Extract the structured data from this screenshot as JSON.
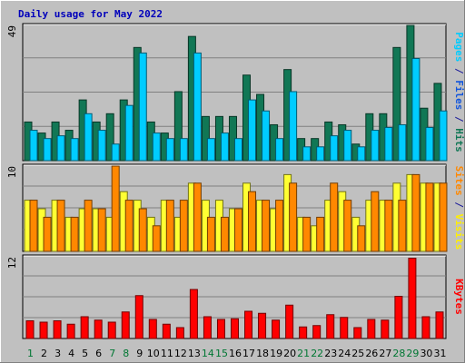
{
  "chart_data": [
    {
      "type": "bar",
      "title": "Daily usage for May 2022",
      "categories": [
        "1",
        "2",
        "3",
        "4",
        "5",
        "6",
        "7",
        "8",
        "9",
        "10",
        "11",
        "12",
        "13",
        "14",
        "15",
        "16",
        "17",
        "18",
        "19",
        "20",
        "21",
        "22",
        "23",
        "24",
        "25",
        "26",
        "27",
        "28",
        "29",
        "30",
        "31"
      ],
      "weekend_categories": [
        "1",
        "7",
        "8",
        "14",
        "15",
        "21",
        "22",
        "28",
        "29"
      ],
      "panels": [
        {
          "name": "hits-files-pages",
          "max_label": "49",
          "ylim": [
            0,
            49
          ],
          "label_parts": [
            {
              "text": "Pages",
              "color": "#00ccff"
            },
            {
              "text": " / ",
              "color": "#1a1a99"
            },
            {
              "text": "Files",
              "color": "#1155dd"
            },
            {
              "text": " / ",
              "color": "#1a1a99"
            },
            {
              "text": "Hits",
              "color": "#117755"
            }
          ],
          "series": [
            {
              "name": "Hits",
              "color": "#117755",
              "values": [
                14,
                10,
                14,
                11,
                22,
                14,
                17,
                22,
                41,
                14,
                10,
                25,
                45,
                16,
                16,
                16,
                31,
                24,
                13,
                33,
                8,
                8,
                14,
                13,
                6,
                17,
                17,
                41,
                49,
                19,
                28
              ]
            },
            {
              "name": "Pages",
              "color": "#00ccff",
              "values": [
                11,
                8,
                9,
                8,
                17,
                11,
                6,
                20,
                39,
                10,
                8,
                8,
                39,
                8,
                10,
                8,
                22,
                18,
                8,
                25,
                5,
                5,
                9,
                11,
                5,
                11,
                12,
                13,
                37,
                12,
                18
              ]
            }
          ]
        },
        {
          "name": "visits-sites",
          "max_label": "10",
          "ylim": [
            0,
            10
          ],
          "label_parts": [
            {
              "text": "Sites",
              "color": "#ff8800"
            },
            {
              "text": " / ",
              "color": "#1a1a99"
            },
            {
              "text": "Visits",
              "color": "#ffee00"
            }
          ],
          "series": [
            {
              "name": "Visits",
              "color": "#ffff33",
              "values": [
                6,
                5,
                6,
                4,
                5,
                5,
                4,
                7,
                6,
                4,
                6,
                4,
                8,
                6,
                6,
                5,
                8,
                6,
                5,
                9,
                4,
                3,
                6,
                7,
                4,
                6,
                6,
                8,
                9,
                8,
                8
              ]
            },
            {
              "name": "Sites",
              "color": "#ff8800",
              "values": [
                6,
                4,
                6,
                4,
                6,
                5,
                10,
                6,
                5,
                3,
                6,
                6,
                8,
                4,
                4,
                5,
                7,
                6,
                6,
                8,
                4,
                4,
                8,
                6,
                3,
                7,
                6,
                6,
                9,
                8,
                8
              ]
            }
          ]
        },
        {
          "name": "kbytes",
          "max_label": "12",
          "ylim": [
            0,
            12
          ],
          "label_parts": [
            {
              "text": "KBytes",
              "color": "#ff0000"
            }
          ],
          "series": [
            {
              "name": "KBytes",
              "color": "#ff0000",
              "values": [
                2.6,
                2.4,
                2.6,
                2.1,
                3.2,
                2.7,
                2.4,
                3.9,
                6.3,
                2.8,
                2.1,
                1.6,
                7.2,
                3.2,
                2.8,
                2.9,
                4.0,
                3.7,
                2.7,
                4.9,
                1.7,
                1.9,
                3.5,
                3.1,
                1.6,
                2.8,
                2.7,
                6.2,
                11.8,
                3.2,
                3.9
              ]
            }
          ]
        }
      ]
    }
  ]
}
